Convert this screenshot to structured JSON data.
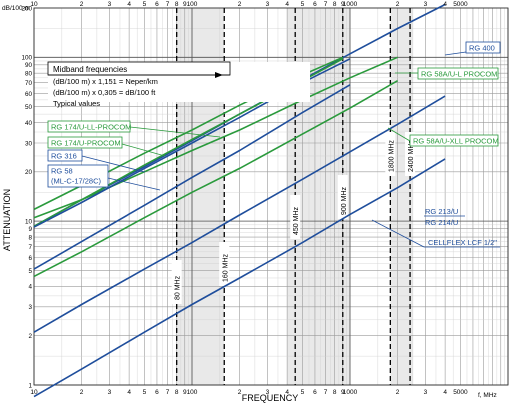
{
  "chart_data": {
    "type": "line",
    "xlabel": "FREQUENCY",
    "ylabel": "ATTENUATION",
    "x_unit": "f, MHz",
    "y_unit": "dB/100 m",
    "xscale": "log",
    "yscale": "log",
    "xlim": [
      10,
      10000
    ],
    "ylim": [
      1,
      200
    ],
    "grid": true,
    "x_tick_labels": [
      {
        "v": 10,
        "t": "10"
      },
      {
        "v": 20,
        "t": "2"
      },
      {
        "v": 30,
        "t": "3"
      },
      {
        "v": 40,
        "t": "4"
      },
      {
        "v": 50,
        "t": "5"
      },
      {
        "v": 60,
        "t": "6"
      },
      {
        "v": 70,
        "t": "7"
      },
      {
        "v": 80,
        "t": "8"
      },
      {
        "v": 90,
        "t": "9"
      },
      {
        "v": 100,
        "t": "100"
      },
      {
        "v": 200,
        "t": "2"
      },
      {
        "v": 300,
        "t": "3"
      },
      {
        "v": 400,
        "t": "4"
      },
      {
        "v": 500,
        "t": "5"
      },
      {
        "v": 600,
        "t": "6"
      },
      {
        "v": 700,
        "t": "7"
      },
      {
        "v": 800,
        "t": "8"
      },
      {
        "v": 900,
        "t": "9"
      },
      {
        "v": 1000,
        "t": "1000"
      },
      {
        "v": 2000,
        "t": "2"
      },
      {
        "v": 3000,
        "t": "3"
      },
      {
        "v": 4000,
        "t": "4"
      },
      {
        "v": 5000,
        "t": "5000"
      }
    ],
    "y_tick_labels": [
      {
        "v": 1,
        "t": "1"
      },
      {
        "v": 2,
        "t": "2"
      },
      {
        "v": 3,
        "t": "3"
      },
      {
        "v": 4,
        "t": "4"
      },
      {
        "v": 5,
        "t": "5"
      },
      {
        "v": 6,
        "t": "6"
      },
      {
        "v": 7,
        "t": "7"
      },
      {
        "v": 8,
        "t": "8"
      },
      {
        "v": 9,
        "t": "9"
      },
      {
        "v": 10,
        "t": "10"
      },
      {
        "v": 20,
        "t": "20"
      },
      {
        "v": 30,
        "t": "30"
      },
      {
        "v": 40,
        "t": "40"
      },
      {
        "v": 50,
        "t": "50"
      },
      {
        "v": 60,
        "t": "60"
      },
      {
        "v": 70,
        "t": "70"
      },
      {
        "v": 80,
        "t": "80"
      },
      {
        "v": 90,
        "t": "90"
      },
      {
        "v": 100,
        "t": "100"
      },
      {
        "v": 200,
        "t": "200"
      }
    ],
    "midband_markers": [
      {
        "freq": 80,
        "label": "80 MHz"
      },
      {
        "freq": 160,
        "label": "160 MHz"
      },
      {
        "freq": 450,
        "label": "450 MHz"
      },
      {
        "freq": 900,
        "label": "900 MHz"
      },
      {
        "freq": 1800,
        "label": "1800 MHz"
      },
      {
        "freq": 2400,
        "label": "2400 MHz"
      }
    ],
    "legend_text": {
      "title": "Midband frequencies",
      "line1": "(dB/100 m) x 1,151 = Neper/km",
      "line2": "(dB/100 m) x 0,305 = dB/100 ft",
      "line3": "Typical values"
    },
    "series": [
      {
        "name": "RG 400",
        "color": "#1f4e9c",
        "x": [
          10,
          20,
          50,
          100,
          200,
          500,
          1000,
          2000,
          4000
        ],
        "y": [
          9.3,
          13.5,
          21.5,
          31,
          45,
          73,
          105,
          150,
          210
        ]
      },
      {
        "name": "RG 58A/U-L PROCOM",
        "color": "#2a9a3c",
        "x": [
          10,
          20,
          50,
          100,
          200,
          500,
          1000,
          2000
        ],
        "y": [
          10.5,
          13.5,
          20,
          27,
          36,
          55,
          75,
          100
        ]
      },
      {
        "name": "RG 174/U-LL-PROCOM",
        "color": "#2a9a3c",
        "x": [
          10,
          20,
          50,
          100,
          200,
          500,
          900
        ],
        "y": [
          11.8,
          16.5,
          26,
          36,
          51,
          78,
          100
        ]
      },
      {
        "name": "RG 174/U-PROCOM",
        "color": "#2a9a3c",
        "x": [
          10,
          20,
          50,
          100,
          200,
          500,
          900
        ],
        "y": [
          9.3,
          13.5,
          22,
          31.5,
          45,
          72,
          98
        ]
      },
      {
        "name": "RG 316",
        "color": "#1f4e9c",
        "x": [
          10,
          20,
          50,
          100,
          200,
          500,
          1000
        ],
        "y": [
          9.2,
          13,
          21,
          30,
          43,
          70,
          98
        ]
      },
      {
        "name": "RG 58 (ML-C-17/28C)",
        "color": "#1f4e9c",
        "x": [
          10,
          20,
          50,
          100,
          200,
          500,
          1000
        ],
        "y": [
          5.1,
          7.5,
          12.5,
          18.5,
          27,
          46,
          68
        ]
      },
      {
        "name": "RG 58A/U-XLL PROCOM",
        "color": "#2a9a3c",
        "x": [
          10,
          20,
          50,
          100,
          200,
          500,
          1000,
          2000
        ],
        "y": [
          4.6,
          6.5,
          10.5,
          15,
          21,
          34,
          49,
          72
        ]
      },
      {
        "name": "RG 213/U RG 214/U",
        "color": "#1f4e9c",
        "x": [
          10,
          20,
          50,
          100,
          200,
          500,
          1000,
          2000,
          4000
        ],
        "y": [
          2.1,
          3.1,
          5.1,
          7.4,
          10.9,
          18,
          26.5,
          39,
          58
        ]
      },
      {
        "name": "CELLFLEX LCF 1/2\"",
        "color": "#1f4e9c",
        "x": [
          10,
          20,
          50,
          100,
          200,
          500,
          1000,
          2000,
          4000
        ],
        "y": [
          0.85,
          1.25,
          2.1,
          3.1,
          4.5,
          7.4,
          11,
          16,
          24
        ]
      }
    ],
    "labels": {
      "rg400": "RG 400",
      "rg58a_l": "RG 58A/U-L PROCOM",
      "rg174_ll": "RG 174/U-LL-PROCOM",
      "rg174": "RG 174/U-PROCOM",
      "rg316": "RG 316",
      "rg58": "RG 58",
      "rg58_sub": "(ML-C-17/28C)",
      "rg58a_xll": "RG 58A/U-XLL PROCOM",
      "rg213": "RG 213/U",
      "rg214": "RG 214/U",
      "cellflex": "CELLFLEX LCF 1/2\""
    }
  }
}
